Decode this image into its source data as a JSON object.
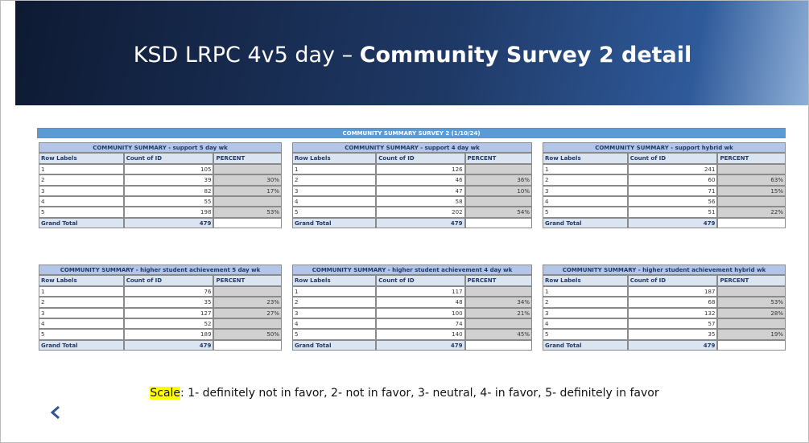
{
  "header": {
    "title_plain": "KSD LRPC 4v5 day – ",
    "title_bold": "Community Survey 2 detail"
  },
  "banner": "COMMUNITY SUMMARY SURVEY 2 (1/10/24)",
  "tables": [
    {
      "title": "COMMUNITY SUMMARY - support 5 day wk",
      "headers": [
        "Row Labels",
        "Count of ID",
        "PERCENT"
      ],
      "rows": [
        [
          "1",
          "105",
          null
        ],
        [
          "2",
          "39",
          "30%"
        ],
        [
          "3",
          "82",
          "17%"
        ],
        [
          "4",
          "55",
          null
        ],
        [
          "5",
          "198",
          "53%"
        ]
      ],
      "total": [
        "Grand Total",
        "479"
      ]
    },
    {
      "title": "COMMUNITY SUMMARY - support 4 day wk",
      "headers": [
        "Row Labels",
        "Count of ID",
        "PERCENT"
      ],
      "rows": [
        [
          "1",
          "126",
          null
        ],
        [
          "2",
          "46",
          "36%"
        ],
        [
          "3",
          "47",
          "10%"
        ],
        [
          "4",
          "58",
          null
        ],
        [
          "5",
          "202",
          "54%"
        ]
      ],
      "total": [
        "Grand Total",
        "479"
      ]
    },
    {
      "title": "COMMUNITY SUMMARY - support hybrid wk",
      "headers": [
        "Row Labels",
        "Count of ID",
        "PERCENT"
      ],
      "rows": [
        [
          "1",
          "241",
          null
        ],
        [
          "2",
          "60",
          "63%"
        ],
        [
          "3",
          "71",
          "15%"
        ],
        [
          "4",
          "56",
          null
        ],
        [
          "5",
          "51",
          "22%"
        ]
      ],
      "total": [
        "Grand Total",
        "479"
      ]
    },
    {
      "title": "COMMUNITY SUMMARY - higher student achievement 5 day wk",
      "headers": [
        "Row Labels",
        "Count of ID",
        "PERCENT"
      ],
      "rows": [
        [
          "1",
          "76",
          null
        ],
        [
          "2",
          "35",
          "23%"
        ],
        [
          "3",
          "127",
          "27%"
        ],
        [
          "4",
          "52",
          null
        ],
        [
          "5",
          "189",
          "50%"
        ]
      ],
      "total": [
        "Grand Total",
        "479"
      ]
    },
    {
      "title": "COMMUNITY SUMMARY - higher student achievement 4 day wk",
      "headers": [
        "Row Labels",
        "Count of ID",
        "PERCENT"
      ],
      "rows": [
        [
          "1",
          "117",
          null
        ],
        [
          "2",
          "48",
          "34%"
        ],
        [
          "3",
          "100",
          "21%"
        ],
        [
          "4",
          "74",
          null
        ],
        [
          "5",
          "140",
          "45%"
        ]
      ],
      "total": [
        "Grand Total",
        "479"
      ]
    },
    {
      "title": "COMMUNITY SUMMARY - higher student achievement hybrid wk",
      "headers": [
        "Row Labels",
        "Count of ID",
        "PERCENT"
      ],
      "rows": [
        [
          "1",
          "187",
          null
        ],
        [
          "2",
          "68",
          "53%"
        ],
        [
          "3",
          "132",
          "28%"
        ],
        [
          "4",
          "57",
          null
        ],
        [
          "5",
          "35",
          "19%"
        ]
      ],
      "total": [
        "Grand Total",
        "479"
      ]
    }
  ],
  "scale": {
    "label": "Scale",
    "text": ": 1- definitely not in favor, 2- not in favor, 3- neutral, 4- in favor, 5- definitely in favor"
  }
}
